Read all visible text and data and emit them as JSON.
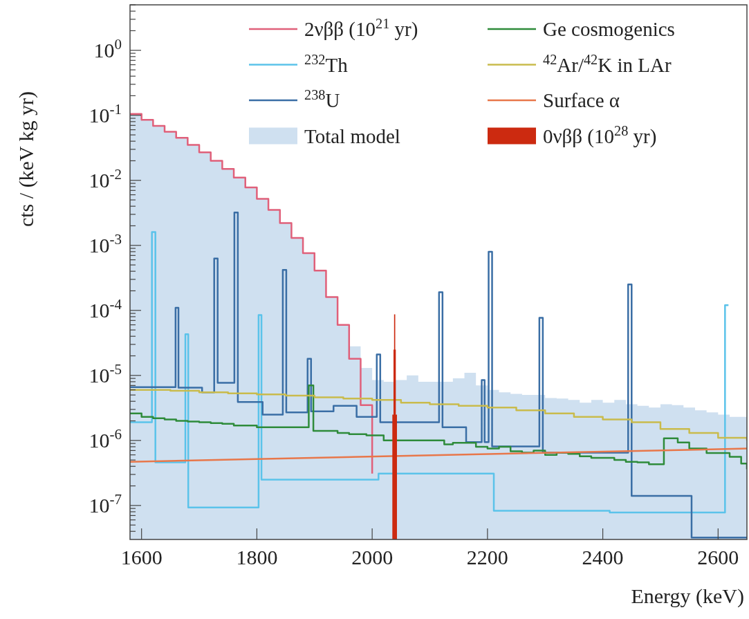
{
  "chart_data": {
    "type": "step",
    "xlabel": "Energy (keV)",
    "ylabel": "cts / (keV kg yr)",
    "log": "y",
    "legend": "top",
    "xlim": [
      1580,
      2650
    ],
    "xticks": [
      1600,
      1800,
      2000,
      2200,
      2400,
      2600
    ],
    "ylim": [
      3e-08,
      5
    ],
    "yticks": [
      {
        "value": 4e-08,
        "label": null
      },
      {
        "value": 5e-08,
        "label": null
      },
      {
        "value": 6e-08,
        "label": null
      },
      {
        "value": 7e-08,
        "label": null
      },
      {
        "value": 8e-08,
        "label": null
      },
      {
        "value": 9e-08,
        "label": null
      },
      {
        "value": 1e-07,
        "label": "10$^{-7}$"
      },
      {
        "value": 2e-07,
        "label": null
      },
      {
        "value": 3e-07,
        "label": null
      },
      {
        "value": 4e-07,
        "label": null
      },
      {
        "value": 5e-07,
        "label": null
      },
      {
        "value": 6e-07,
        "label": null
      },
      {
        "value": 7e-07,
        "label": null
      },
      {
        "value": 8e-07,
        "label": null
      },
      {
        "value": 9e-07,
        "label": null
      },
      {
        "value": 1e-06,
        "label": "10$^{-6}$"
      },
      {
        "value": 2e-06,
        "label": null
      },
      {
        "value": 3e-06,
        "label": null
      },
      {
        "value": 4e-06,
        "label": null
      },
      {
        "value": 5e-06,
        "label": null
      },
      {
        "value": 6e-06,
        "label": null
      },
      {
        "value": 7e-06,
        "label": null
      },
      {
        "value": 8e-06,
        "label": null
      },
      {
        "value": 9e-06,
        "label": null
      },
      {
        "value": 1e-05,
        "label": "10$^{-5}$"
      },
      {
        "value": 2e-05,
        "label": null
      },
      {
        "value": 3e-05,
        "label": null
      },
      {
        "value": 4e-05,
        "label": null
      },
      {
        "value": 5e-05,
        "label": null
      },
      {
        "value": 6e-05,
        "label": null
      },
      {
        "value": 7e-05,
        "label": null
      },
      {
        "value": 8e-05,
        "label": null
      },
      {
        "value": 9e-05,
        "label": null
      },
      {
        "value": 0.0001,
        "label": "10$^{-4}$"
      },
      {
        "value": 0.0002,
        "label": null
      },
      {
        "value": 0.0003,
        "label": null
      },
      {
        "value": 0.0004,
        "label": null
      },
      {
        "value": 0.0005,
        "label": null
      },
      {
        "value": 0.0006,
        "label": null
      },
      {
        "value": 0.0007,
        "label": null
      },
      {
        "value": 0.0008,
        "label": null
      },
      {
        "value": 0.0009,
        "label": null
      },
      {
        "value": 0.001,
        "label": "10$^{-3}$"
      },
      {
        "value": 0.002,
        "label": null
      },
      {
        "value": 0.003,
        "label": null
      },
      {
        "value": 0.004,
        "label": null
      },
      {
        "value": 0.005,
        "label": null
      },
      {
        "value": 0.006,
        "label": null
      },
      {
        "value": 0.007,
        "label": null
      },
      {
        "value": 0.008,
        "label": null
      },
      {
        "value": 0.009,
        "label": null
      },
      {
        "value": 0.01,
        "label": "10$^{-2}$"
      },
      {
        "value": 0.02,
        "label": null
      },
      {
        "value": 0.03,
        "label": null
      },
      {
        "value": 0.04,
        "label": null
      },
      {
        "value": 0.05,
        "label": null
      },
      {
        "value": 0.06,
        "label": null
      },
      {
        "value": 0.07,
        "label": null
      },
      {
        "value": 0.08,
        "label": null
      },
      {
        "value": 0.09,
        "label": null
      },
      {
        "value": 0.1,
        "label": "10$^{-1}$"
      },
      {
        "value": 0.2,
        "label": null
      },
      {
        "value": 0.3,
        "label": null
      },
      {
        "value": 0.4,
        "label": null
      },
      {
        "value": 0.5,
        "label": null
      },
      {
        "value": 0.6,
        "label": null
      },
      {
        "value": 0.7,
        "label": null
      },
      {
        "value": 0.8,
        "label": null
      },
      {
        "value": 0.9,
        "label": null
      },
      {
        "value": 1,
        "label": "10$^{0}$"
      },
      {
        "value": 2,
        "label": null
      },
      {
        "value": 3,
        "label": null
      },
      {
        "value": 4,
        "label": null
      },
      {
        "value": 5,
        "label": null
      }
    ],
    "series": [
      {
        "name": "2νββ (10$^{21}$ yr)",
        "color": "#e0607a",
        "x": [
          1580,
          1600,
          1620,
          1640,
          1660,
          1680,
          1700,
          1720,
          1740,
          1760,
          1780,
          1800,
          1820,
          1840,
          1860,
          1880,
          1900,
          1920,
          1940,
          1960,
          1980,
          2000
        ],
        "values": [
          0.105,
          0.085,
          0.069,
          0.056,
          0.045,
          0.035,
          0.027,
          0.02,
          0.015,
          0.011,
          0.0078,
          0.0052,
          0.0035,
          0.0022,
          0.0013,
          0.00076,
          0.00041,
          0.00016,
          6e-05,
          1.8e-05,
          3.5e-06,
          3.1e-07
        ]
      },
      {
        "name": "$^{232}$Th",
        "color": "#5bc3ea",
        "x": [
          1580,
          1618,
          1624,
          1676,
          1681,
          1803,
          1808,
          2011,
          2211,
          2412,
          2612,
          2618
        ],
        "values": [
          1.9e-06,
          0.0016,
          4.6e-07,
          4.3e-05,
          9.3e-08,
          8.5e-05,
          2.5e-07,
          3.1e-07,
          8.3e-08,
          7.8e-08,
          0.00012,
          0.00012
        ]
      },
      {
        "name": "$^{238}$U",
        "color": "#3a6ea5",
        "x": [
          1580,
          1659,
          1664,
          1705,
          1726,
          1732,
          1761,
          1767,
          1810,
          1845,
          1851,
          1888,
          1894,
          1933,
          1973,
          2008,
          2014,
          2116,
          2122,
          2163,
          2190,
          2195,
          2202,
          2208,
          2290,
          2296,
          2444,
          2450,
          2554,
          2650
        ],
        "values": [
          6.6e-06,
          0.00011,
          6.5e-06,
          5.5e-06,
          0.00063,
          7.7e-06,
          0.0032,
          3.9e-06,
          2.5e-06,
          0.00042,
          2.7e-06,
          1.8e-05,
          2.8e-06,
          3.4e-06,
          2.3e-06,
          2.1e-05,
          1.9e-06,
          0.00019,
          1.6e-06,
          9.4e-07,
          8.5e-06,
          9.4e-07,
          0.0008,
          8.1e-07,
          7.7e-05,
          6.5e-07,
          0.00025,
          1.4e-07,
          3.2e-08,
          3.2e-08
        ]
      },
      {
        "name": "Total model",
        "type": "area",
        "color": "#cfe0f0",
        "x": [
          1580,
          1600,
          1620,
          1640,
          1660,
          1680,
          1700,
          1720,
          1740,
          1760,
          1780,
          1800,
          1820,
          1840,
          1860,
          1880,
          1900,
          1920,
          1940,
          1960,
          1980,
          2000,
          2020,
          2040,
          2060,
          2080,
          2100,
          2120,
          2140,
          2160,
          2180,
          2200,
          2220,
          2240,
          2260,
          2280,
          2300,
          2320,
          2340,
          2360,
          2380,
          2400,
          2420,
          2440,
          2460,
          2480,
          2500,
          2520,
          2540,
          2560,
          2580,
          2600,
          2620,
          2640,
          2650
        ],
        "values": [
          0.105,
          0.085,
          0.069,
          0.056,
          0.045,
          0.035,
          0.027,
          0.02,
          0.015,
          0.011,
          0.0078,
          0.0052,
          0.0035,
          0.0022,
          0.0013,
          0.00076,
          0.00041,
          0.00016,
          6e-05,
          2.8e-05,
          1.3e-05,
          8.5e-06,
          8e-06,
          8.5e-06,
          1e-05,
          8e-06,
          8e-06,
          8e-06,
          9e-06,
          1.1e-05,
          7e-06,
          6e-06,
          5.5e-06,
          5.2e-06,
          5e-06,
          5e-06,
          4.5e-06,
          4.4e-06,
          4.2e-06,
          3.8e-06,
          4.2e-06,
          3.8e-06,
          4.2e-06,
          3.6e-06,
          3.4e-06,
          3.2e-06,
          3.6e-06,
          3.5e-06,
          3.2e-06,
          2.9e-06,
          2.7e-06,
          2.5e-06,
          2.3e-06,
          2.3e-06,
          2.3e-06
        ]
      },
      {
        "name": "Ge cosmogenics",
        "color": "#2e8b3a",
        "x": [
          1580,
          1600,
          1620,
          1640,
          1660,
          1680,
          1700,
          1720,
          1740,
          1760,
          1780,
          1800,
          1820,
          1840,
          1860,
          1880,
          1890,
          1898,
          1940,
          1960,
          1990,
          2020,
          2060,
          2100,
          2125,
          2140,
          2180,
          2200,
          2220,
          2240,
          2260,
          2280,
          2300,
          2320,
          2340,
          2360,
          2380,
          2400,
          2420,
          2440,
          2460,
          2480,
          2506,
          2530,
          2550,
          2580,
          2620,
          2640,
          2650
        ],
        "values": [
          2.6e-06,
          2.3e-06,
          2.2e-06,
          2.1e-06,
          2e-06,
          1.95e-06,
          1.9e-06,
          1.85e-06,
          1.8e-06,
          1.7e-06,
          1.7e-06,
          1.6e-06,
          1.6e-06,
          1.6e-06,
          1.6e-06,
          1.6e-06,
          7e-06,
          1.4e-06,
          1.3e-06,
          1.25e-06,
          1.2e-06,
          1e-06,
          1e-06,
          1e-06,
          8.7e-07,
          9.2e-07,
          8e-07,
          7.5e-07,
          8e-07,
          6.8e-07,
          6.5e-07,
          7e-07,
          6e-07,
          6.5e-07,
          6.2e-07,
          5.7e-07,
          5.4e-07,
          5.4e-07,
          5e-07,
          4.7e-07,
          4.6e-07,
          4.3e-07,
          1.08e-06,
          9.3e-07,
          7.5e-07,
          6.4e-07,
          5.6e-07,
          4.4e-07,
          3.6e-07
        ]
      },
      {
        "name": "$^{42}$Ar/$^{42}$K in LAr",
        "color": "#c9bb4c",
        "x": [
          1580,
          1650,
          1700,
          1750,
          1800,
          1850,
          1900,
          1950,
          2000,
          2050,
          2100,
          2150,
          2200,
          2250,
          2300,
          2350,
          2400,
          2450,
          2500,
          2550,
          2600,
          2650
        ],
        "values": [
          6e-06,
          5.8e-06,
          5.5e-06,
          5.3e-06,
          5.1e-06,
          4.9e-06,
          4.6e-06,
          4.4e-06,
          4.2e-06,
          3.8e-06,
          3.6e-06,
          3.4e-06,
          3.2e-06,
          2.9e-06,
          2.6e-06,
          2.3e-06,
          2.1e-06,
          1.9e-06,
          1.5e-06,
          1.3e-06,
          1.1e-06,
          1e-06
        ]
      },
      {
        "name": "Surface α",
        "type": "line",
        "color": "#e8774a",
        "x": [
          1580,
          2650
        ],
        "values": [
          4.7e-07,
          7.5e-07
        ]
      },
      {
        "name": "0νββ (10$^{28}$ yr)",
        "type": "area",
        "color": "#cc2a10",
        "x": [
          2035,
          2037,
          2038,
          2040,
          2041,
          2043
        ],
        "values": [
          2.5e-06,
          2.5e-05,
          8.7e-05,
          2.5e-05,
          2.5e-06,
          2.5e-06
        ]
      }
    ]
  }
}
